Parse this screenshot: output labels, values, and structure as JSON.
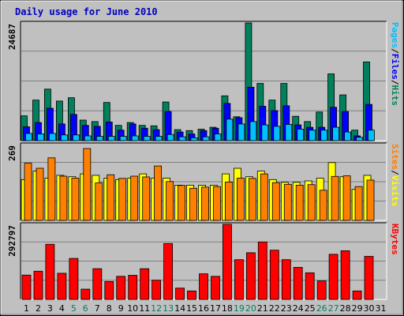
{
  "chart_data": [
    {
      "type": "bar",
      "title": "Daily usage for June 2010",
      "panel": "top",
      "y_axis_label": "24687",
      "ylim": [
        0,
        24687
      ],
      "categories": [
        "1",
        "2",
        "3",
        "4",
        "5",
        "6",
        "7",
        "8",
        "9",
        "10",
        "11",
        "12",
        "13",
        "14",
        "15",
        "16",
        "17",
        "18",
        "19",
        "20",
        "21",
        "22",
        "23",
        "24",
        "25",
        "26",
        "27",
        "28",
        "29",
        "30",
        "31"
      ],
      "weekend_days": [
        "5",
        "6",
        "12",
        "13",
        "19",
        "20",
        "26",
        "27"
      ],
      "legend": [
        {
          "text": "Hits",
          "color": "#00805c"
        },
        {
          "text": "/",
          "color": "#000000"
        },
        {
          "text": "Files",
          "color": "#0000ff"
        },
        {
          "text": "/",
          "color": "#000000"
        },
        {
          "text": "Pages",
          "color": "#00c0ff"
        }
      ],
      "series": [
        {
          "name": "Hits",
          "color": "#00805c",
          "values": [
            5200,
            8500,
            10800,
            8300,
            9000,
            4300,
            4000,
            8000,
            3200,
            3800,
            3200,
            3100,
            8100,
            2300,
            2100,
            2400,
            2800,
            9400,
            5000,
            24687,
            12000,
            8500,
            12000,
            5100,
            4000,
            6000,
            14000,
            9600,
            2200,
            16500,
            0
          ]
        },
        {
          "name": "Files",
          "color": "#0000ff",
          "values": [
            2900,
            3800,
            6800,
            3500,
            5500,
            3200,
            3000,
            3900,
            2200,
            3500,
            2600,
            2300,
            6100,
            1800,
            1400,
            2100,
            2600,
            7800,
            4800,
            11200,
            7200,
            6300,
            7300,
            3300,
            2800,
            2800,
            7000,
            6100,
            1000,
            7600,
            0
          ]
        },
        {
          "name": "Pages",
          "color": "#00c0ff",
          "values": [
            1500,
            1400,
            1500,
            1200,
            1200,
            1000,
            900,
            900,
            900,
            1000,
            900,
            900,
            1300,
            800,
            600,
            800,
            1400,
            4500,
            3500,
            4000,
            3300,
            3000,
            3400,
            2400,
            2200,
            2200,
            2800,
            1800,
            700,
            2200,
            0
          ]
        }
      ]
    },
    {
      "type": "bar",
      "panel": "middle",
      "y_axis_label": "269",
      "ylim": [
        0,
        269
      ],
      "legend": [
        {
          "text": "Visits",
          "color": "#ffff00"
        },
        {
          "text": "/",
          "color": "#000000"
        },
        {
          "text": "Sites",
          "color": "#ff8000"
        }
      ],
      "series": [
        {
          "name": "Visits",
          "color": "#ffff00",
          "values": [
            145,
            175,
            150,
            160,
            155,
            165,
            160,
            150,
            145,
            150,
            165,
            150,
            150,
            125,
            125,
            125,
            125,
            165,
            185,
            155,
            175,
            145,
            135,
            135,
            140,
            150,
            205,
            155,
            110,
            160,
            0
          ]
        },
        {
          "name": "Sites",
          "color": "#ff8000",
          "values": [
            203,
            185,
            222,
            157,
            150,
            255,
            133,
            162,
            149,
            157,
            154,
            193,
            138,
            124,
            114,
            118,
            120,
            136,
            150,
            149,
            165,
            134,
            128,
            125,
            127,
            107,
            156,
            158,
            120,
            143,
            0
          ]
        }
      ]
    },
    {
      "type": "bar",
      "panel": "bottom",
      "y_axis_label": "292797",
      "ylim": [
        0,
        292797
      ],
      "legend": [
        {
          "text": "KBytes",
          "color": "#ff0000"
        }
      ],
      "series": [
        {
          "name": "KBytes",
          "color": "#ff0000",
          "values": [
            95000,
            110000,
            215000,
            102000,
            160000,
            40000,
            120000,
            70000,
            90000,
            94000,
            120000,
            75000,
            218000,
            44000,
            33000,
            100000,
            90000,
            292797,
            155000,
            182000,
            224000,
            192000,
            155000,
            125000,
            104000,
            72000,
            176000,
            190000,
            33000,
            168000,
            0
          ]
        }
      ]
    }
  ]
}
